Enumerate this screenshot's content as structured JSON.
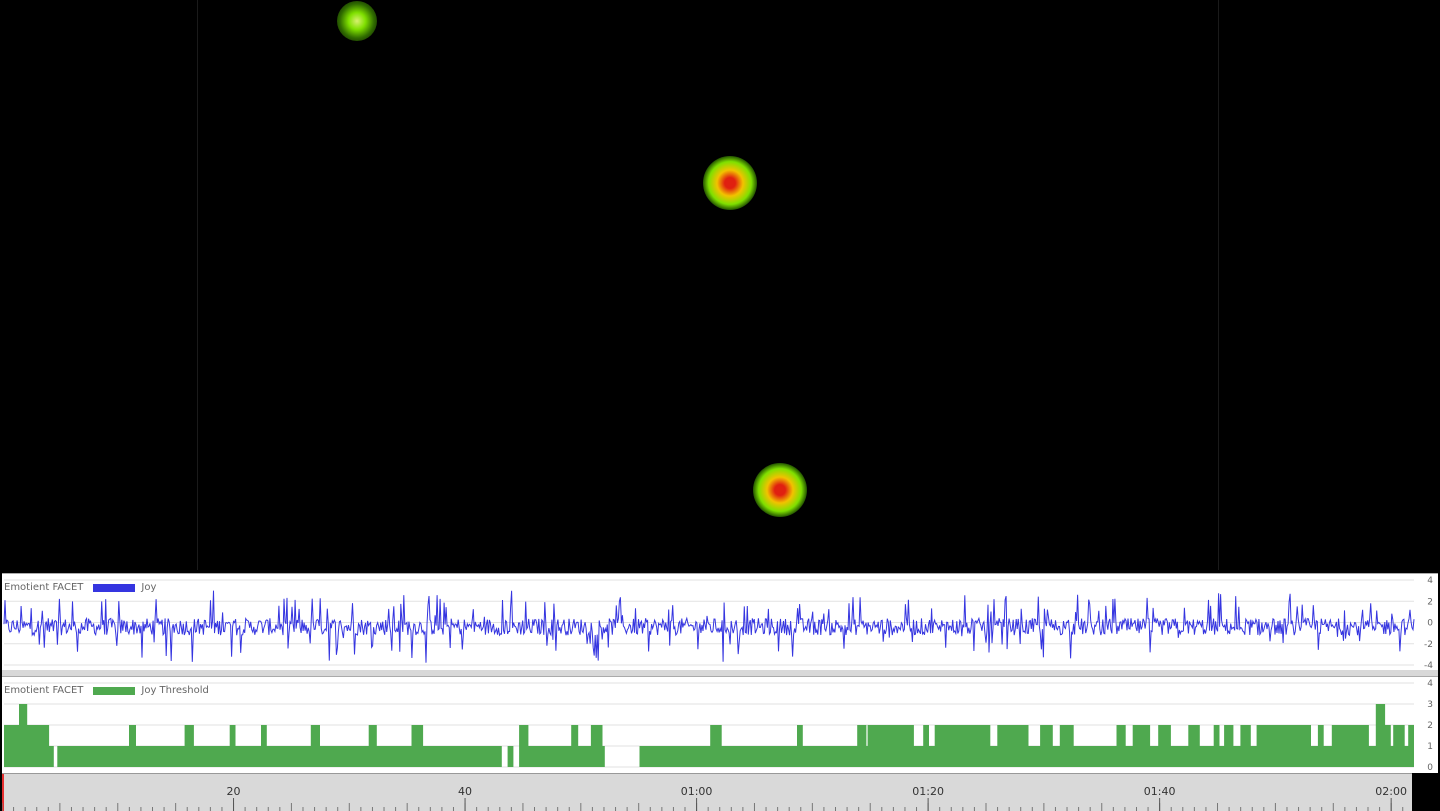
{
  "gaze_points": [
    {
      "x": 357,
      "y": 21,
      "intensity": "low"
    },
    {
      "x": 730,
      "y": 183,
      "intensity": "high"
    },
    {
      "x": 780,
      "y": 490,
      "intensity": "high"
    }
  ],
  "heatmap_colors": {
    "low": "#7fe000",
    "mid": "#f2c200",
    "high": "#e02010"
  },
  "panels": [
    {
      "id": "joy",
      "source_label": "Emotient FACET",
      "series_name": "Joy",
      "color": "#3535e0",
      "type": "line",
      "ylim": [
        -4,
        4
      ],
      "yticks": [
        "4",
        "2",
        "0",
        "-2",
        "-4"
      ]
    },
    {
      "id": "threshold",
      "source_label": "Emotient FACET",
      "series_name": "Joy Threshold",
      "color": "#4fa94f",
      "type": "step",
      "ylim": [
        0,
        4
      ],
      "yticks": [
        "4",
        "3",
        "2",
        "1",
        "0"
      ],
      "segments": [
        [
          0,
          2
        ],
        [
          0.5,
          2
        ],
        [
          1.3,
          3
        ],
        [
          2.0,
          2
        ],
        [
          3.9,
          1
        ],
        [
          4.3,
          0
        ],
        [
          4.6,
          1
        ],
        [
          10.8,
          2
        ],
        [
          11.4,
          1
        ],
        [
          15.6,
          2
        ],
        [
          16.4,
          1
        ],
        [
          19.5,
          2
        ],
        [
          20.0,
          1
        ],
        [
          22.2,
          2
        ],
        [
          22.7,
          1
        ],
        [
          26.5,
          2
        ],
        [
          27.3,
          1
        ],
        [
          31.5,
          2
        ],
        [
          32.2,
          1
        ],
        [
          35.2,
          2
        ],
        [
          36.2,
          1
        ],
        [
          43.0,
          0
        ],
        [
          43.5,
          1
        ],
        [
          44.0,
          0
        ],
        [
          44.5,
          2
        ],
        [
          45.3,
          1
        ],
        [
          49.0,
          2
        ],
        [
          49.6,
          1
        ],
        [
          50.7,
          2
        ],
        [
          51.7,
          1
        ],
        [
          51.9,
          0
        ],
        [
          54.9,
          1
        ],
        [
          61.0,
          2
        ],
        [
          62.0,
          1
        ],
        [
          68.5,
          2
        ],
        [
          69.0,
          1
        ],
        [
          73.7,
          2
        ],
        [
          74.5,
          1
        ],
        [
          74.6,
          2
        ],
        [
          78.6,
          1
        ],
        [
          79.4,
          2
        ],
        [
          79.9,
          1
        ],
        [
          80.4,
          2
        ],
        [
          85.2,
          1
        ],
        [
          85.8,
          2
        ],
        [
          88.5,
          1
        ],
        [
          89.5,
          2
        ],
        [
          90.6,
          1
        ],
        [
          91.2,
          2
        ],
        [
          92.4,
          1
        ],
        [
          96.1,
          2
        ],
        [
          96.9,
          1
        ],
        [
          97.5,
          2
        ],
        [
          99.0,
          1
        ],
        [
          99.7,
          2
        ],
        [
          100.8,
          1
        ],
        [
          102.3,
          2
        ],
        [
          103.3,
          1
        ],
        [
          104.5,
          2
        ],
        [
          105.0,
          1
        ],
        [
          105.4,
          2
        ],
        [
          106.2,
          1
        ],
        [
          106.8,
          2
        ],
        [
          107.7,
          1
        ],
        [
          108.2,
          2
        ],
        [
          112.9,
          1
        ],
        [
          113.5,
          2
        ],
        [
          114.0,
          1
        ],
        [
          114.7,
          2
        ],
        [
          117.9,
          1
        ],
        [
          118.5,
          3
        ],
        [
          119.3,
          2
        ],
        [
          119.8,
          1
        ],
        [
          120.0,
          2
        ],
        [
          121.0,
          1
        ],
        [
          121.3,
          2
        ],
        [
          121.8,
          2
        ]
      ]
    }
  ],
  "timeline": {
    "duration_s": 121.8,
    "labels": [
      {
        "t": 20,
        "text": "20"
      },
      {
        "t": 40,
        "text": "40"
      },
      {
        "t": 60,
        "text": "01:00"
      },
      {
        "t": 80,
        "text": "01:20"
      },
      {
        "t": 100,
        "text": "01:40"
      },
      {
        "t": 120,
        "text": "02:00"
      }
    ]
  }
}
